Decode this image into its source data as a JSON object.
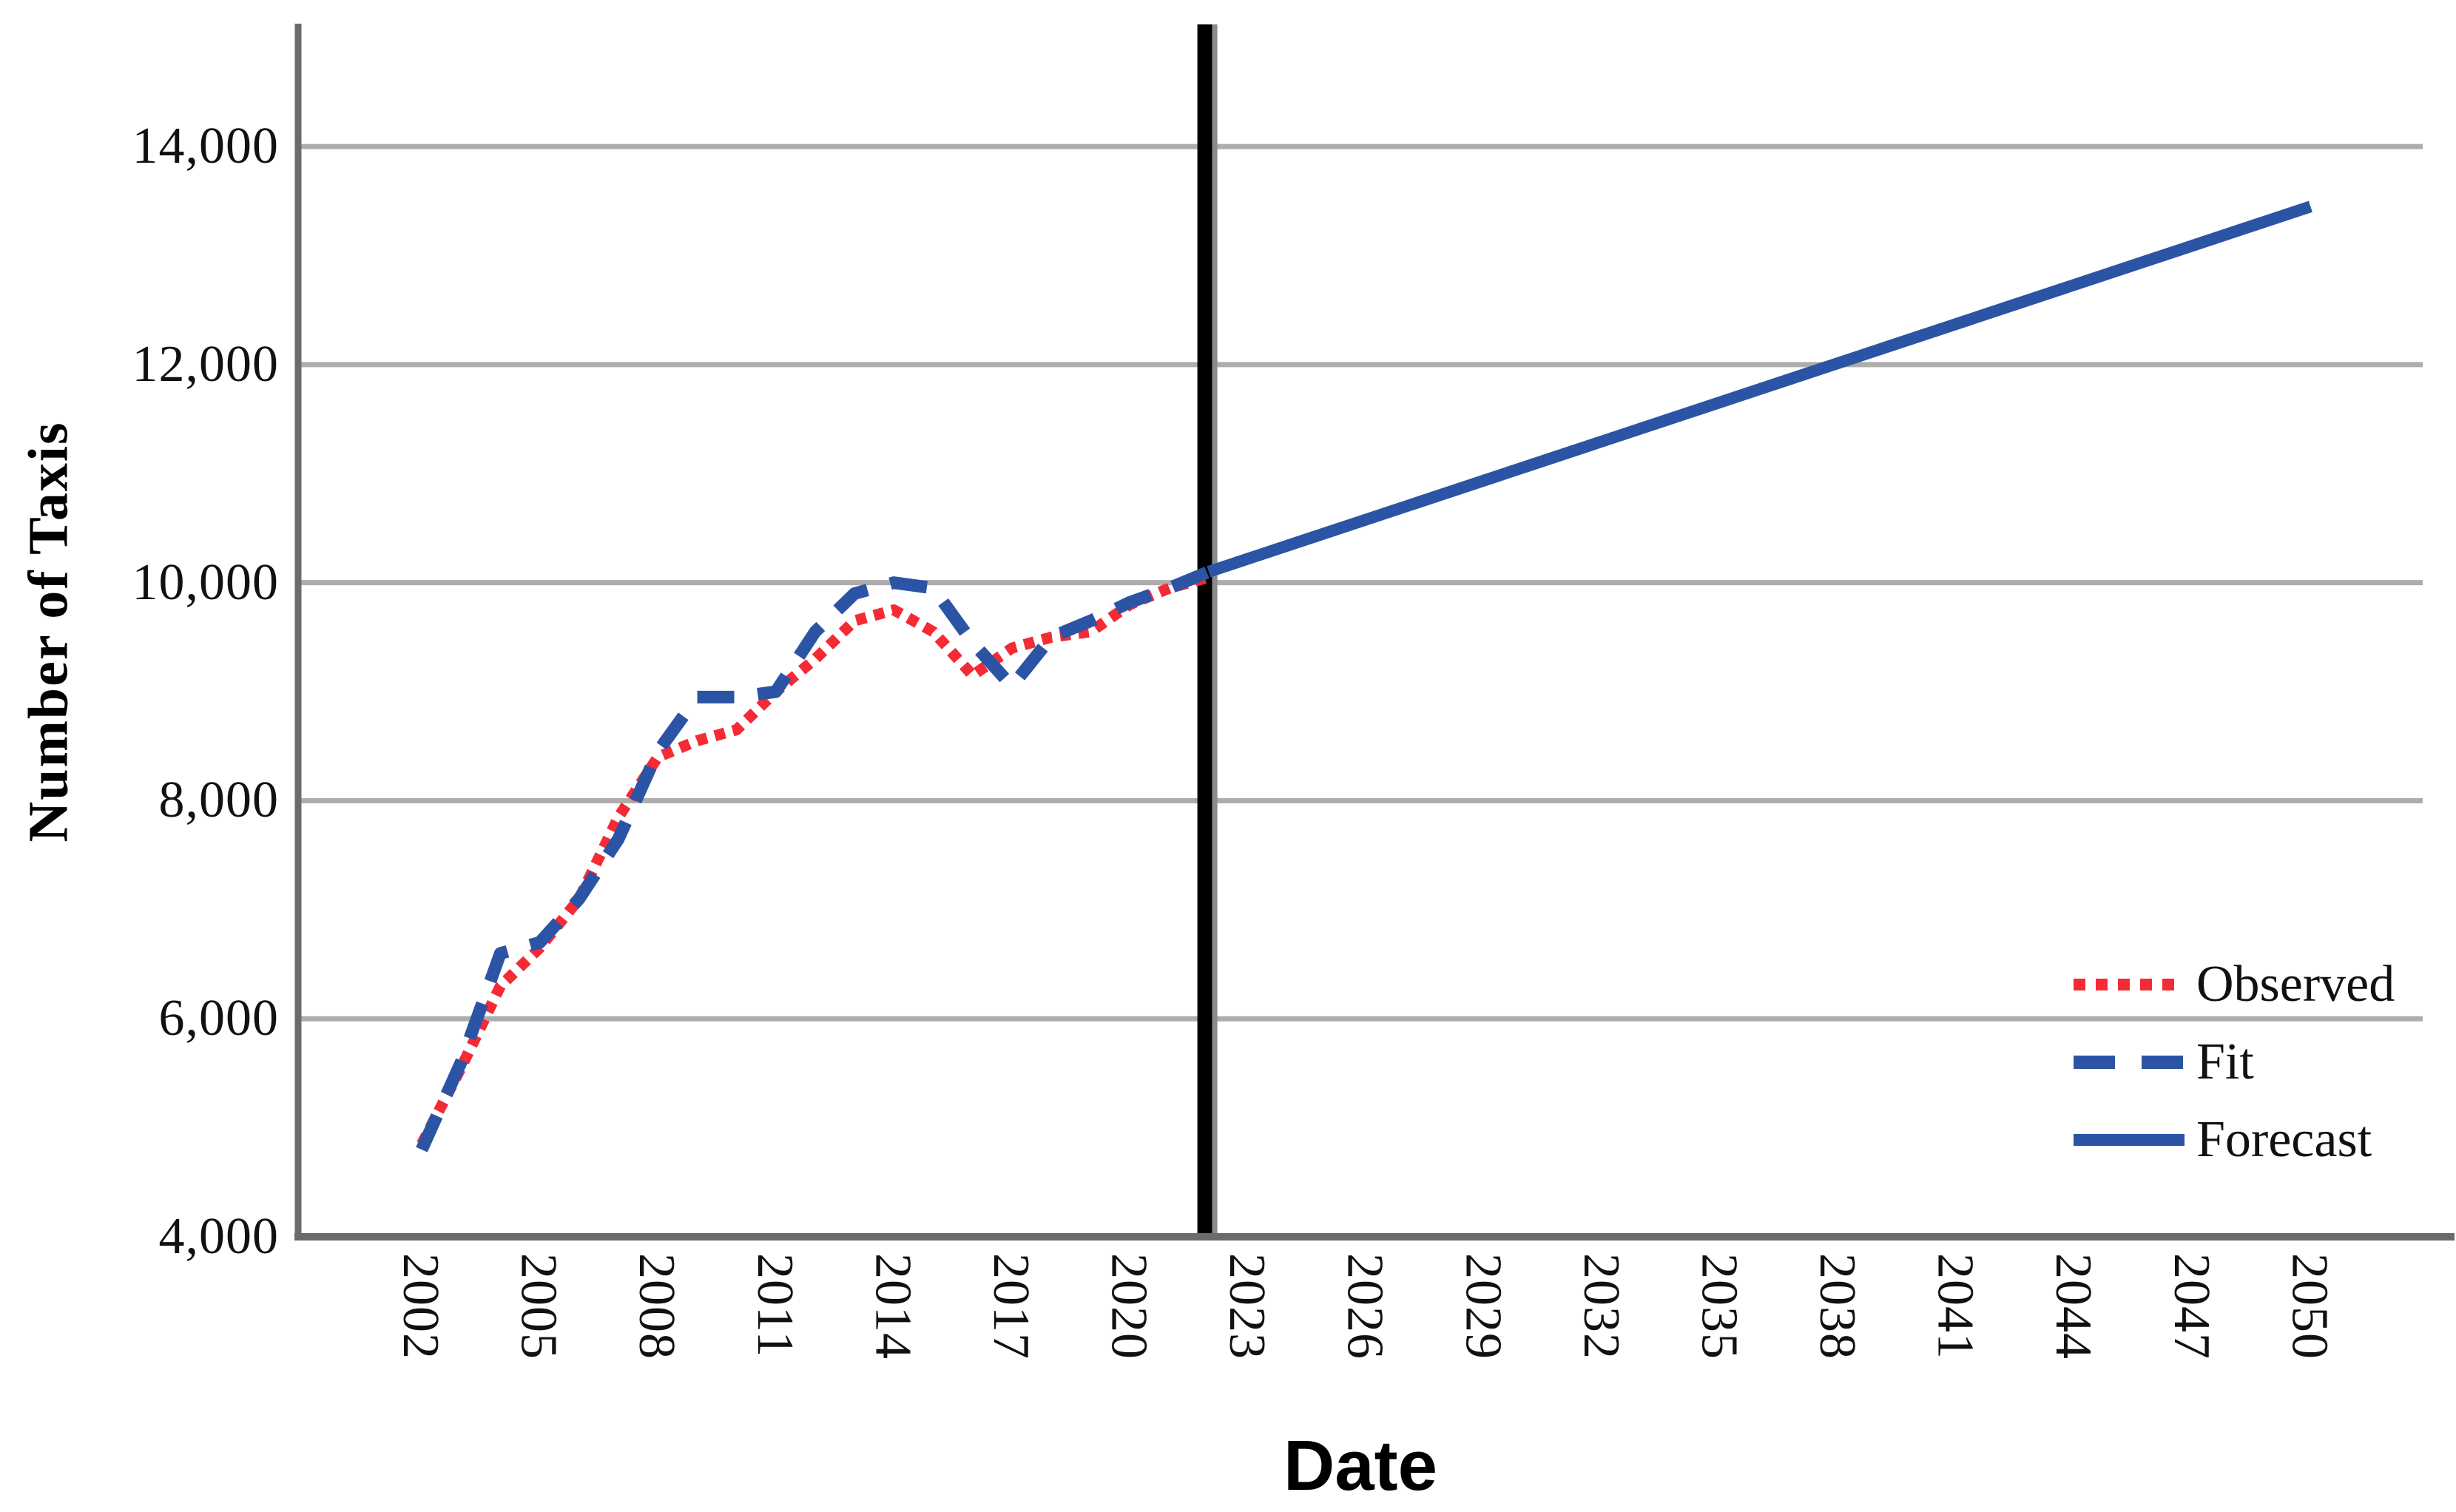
{
  "chart_data": {
    "type": "line",
    "title": "",
    "xlabel": "Date",
    "ylabel": "Number of Taxis",
    "xlim": [
      1998.86,
      2052.85
    ],
    "ylim": [
      4000,
      15100
    ],
    "grid": "horizontal",
    "legend_position": "inside-right",
    "background": "#FFFFFF",
    "axis_color": "#6B6B6B",
    "gridline_color": "#ADADAD",
    "tick_label_color": "#111111",
    "forecast_divider": {
      "x": 2021.9,
      "color": "#000000",
      "edge_color": "#8A8A8A"
    },
    "xticks": [
      2002,
      2005,
      2008,
      2011,
      2014,
      2017,
      2020,
      2023,
      2026,
      2029,
      2032,
      2035,
      2038,
      2041,
      2044,
      2047,
      2050
    ],
    "xtick_labels": [
      "2002",
      "2005",
      "2008",
      "2011",
      "2014",
      "2017",
      "2020",
      "2023",
      "2026",
      "2029",
      "2032",
      "2035",
      "2038",
      "2041",
      "2044",
      "2047",
      "2050"
    ],
    "yticks": [
      4000,
      6000,
      8000,
      10000,
      12000,
      14000
    ],
    "ytick_labels": [
      "4,000",
      "6,000",
      "8,000",
      "10,000",
      "12,000",
      "14,000"
    ],
    "x": [
      2002,
      2003,
      2004,
      2005,
      2006,
      2007,
      2008,
      2009,
      2010,
      2011,
      2012,
      2013,
      2014,
      2015,
      2016,
      2017,
      2018,
      2019,
      2020,
      2021,
      2022
    ],
    "series": [
      {
        "name": "Observed",
        "style": "dotted",
        "color": "#F42A35",
        "values": [
          4850,
          5550,
          6300,
          6650,
          7100,
          7850,
          8400,
          8550,
          8650,
          9000,
          9300,
          9650,
          9750,
          9550,
          9150,
          9400,
          9500,
          9550,
          9800,
          9950,
          10050
        ]
      },
      {
        "name": "Fit",
        "style": "dashed",
        "color": "#2C54A5",
        "values": [
          4800,
          5600,
          6600,
          6700,
          7100,
          7650,
          8450,
          8950,
          8950,
          9000,
          9550,
          9900,
          10000,
          9950,
          9450,
          9050,
          9500,
          9650,
          9820,
          9950,
          10100
        ]
      },
      {
        "name": "Forecast",
        "style": "solid",
        "color": "#2C54A5",
        "x": [
          2022,
          2050
        ],
        "values": [
          10100,
          13450
        ]
      }
    ]
  }
}
